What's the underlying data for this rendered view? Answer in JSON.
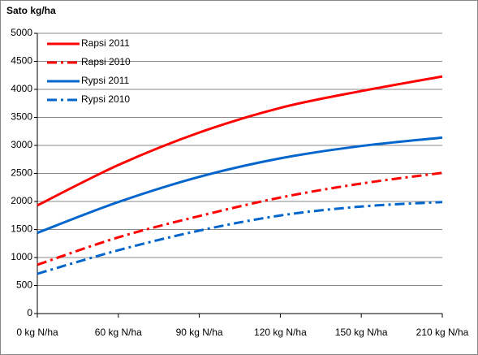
{
  "chart_data": {
    "type": "line",
    "title": "Sato kg/ha",
    "categories": [
      "0 kg N/ha",
      "60 kg N/ha",
      "90 kg N/ha",
      "120 kg N/ha",
      "150 kg N/ha",
      "210 kg N/ha"
    ],
    "series": [
      {
        "name": "Rapsi 2011",
        "color": "#ff0000",
        "style": "solid",
        "values": [
          1930,
          2650,
          3230,
          3670,
          3970,
          4230
        ]
      },
      {
        "name": "Rapsi 2010",
        "color": "#ff0000",
        "style": "dashdot",
        "values": [
          870,
          1360,
          1740,
          2070,
          2320,
          2510
        ]
      },
      {
        "name": "Rypsi 2011",
        "color": "#0066cc",
        "style": "solid",
        "values": [
          1440,
          1990,
          2440,
          2770,
          2990,
          3140
        ]
      },
      {
        "name": "Rypsi 2010",
        "color": "#0066cc",
        "style": "dashdot",
        "values": [
          710,
          1130,
          1480,
          1750,
          1910,
          1990
        ]
      }
    ],
    "ylim": [
      0,
      5000
    ],
    "yticks": [
      0,
      500,
      1000,
      1500,
      2000,
      2500,
      3000,
      3500,
      4000,
      4500,
      5000
    ],
    "grid": true,
    "legend": "top-left"
  }
}
